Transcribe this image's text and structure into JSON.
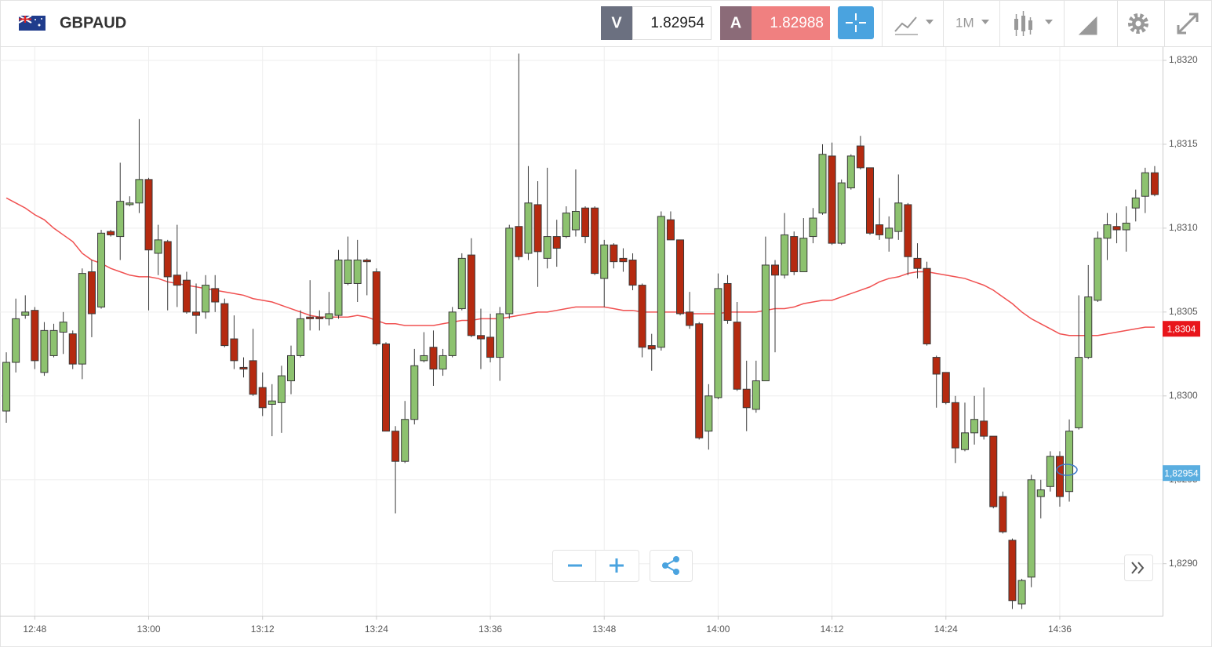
{
  "header": {
    "symbol": "GBPAUD",
    "bid_label": "V",
    "bid": "1.82954",
    "ask_label": "A",
    "ask": "1.82988",
    "timeframe": "1M"
  },
  "chart_data": {
    "type": "candlestick",
    "categories": [
      null,
      null,
      null,
      "12:48",
      null,
      null,
      null,
      null,
      null,
      null,
      null,
      null,
      null,
      null,
      null,
      "13:00",
      null,
      null,
      null,
      null,
      null,
      null,
      null,
      null,
      null,
      null,
      null,
      "13:12",
      null,
      null,
      null,
      null,
      null,
      null,
      null,
      null,
      null,
      null,
      null,
      "13:24",
      null,
      null,
      null,
      null,
      null,
      null,
      null,
      null,
      null,
      null,
      null,
      "13:36",
      null,
      null,
      null,
      null,
      null,
      null,
      null,
      null,
      null,
      null,
      null,
      "13:48",
      null,
      null,
      null,
      null,
      null,
      null,
      null,
      null,
      null,
      null,
      null,
      "14:00",
      null,
      null,
      null,
      null,
      null,
      null,
      null,
      null,
      null,
      null,
      null,
      "14:12",
      null,
      null,
      null,
      null,
      null,
      null,
      null,
      null,
      null,
      null,
      null,
      "14:24",
      null,
      null,
      null,
      null,
      null,
      null,
      null,
      null,
      null,
      null,
      null,
      "14:36",
      null,
      null,
      null,
      null,
      null,
      null,
      null,
      null,
      null,
      null
    ],
    "open": [
      1.82991,
      1.8302,
      1.83048,
      1.83051,
      1.83014,
      1.83024,
      1.83038,
      1.83037,
      1.83019,
      1.83074,
      1.83053,
      1.83098,
      1.83095,
      1.83114,
      1.83115,
      1.83129,
      1.83085,
      1.83092,
      1.83072,
      1.83069,
      1.8305,
      1.8305,
      1.83064,
      1.83055,
      1.83034,
      1.83017,
      1.83021,
      1.83005,
      1.82995,
      1.82996,
      1.83009,
      1.83024,
      1.83047,
      1.83047,
      1.83046,
      1.83048,
      1.83067,
      1.83067,
      1.83081,
      1.83074,
      1.83031,
      1.82979,
      1.82961,
      1.82986,
      1.83021,
      1.83029,
      1.83016,
      1.83024,
      1.83052,
      1.83084,
      1.83036,
      1.83035,
      1.83023,
      1.83049,
      1.83101,
      1.83085,
      1.83114,
      1.83082,
      1.83095,
      1.83095,
      1.83099,
      1.83112,
      1.83112,
      1.8307,
      1.8309,
      1.83082,
      1.83081,
      1.83066,
      1.8303,
      1.83029,
      1.83105,
      1.83093,
      1.8305,
      1.83043,
      1.82979,
      1.82999,
      1.83067,
      1.83044,
      1.83004,
      1.82992,
      1.83009,
      1.83078,
      1.83072,
      1.83095,
      1.83074,
      1.83095,
      1.83109,
      1.83143,
      1.83091,
      1.83124,
      1.83149,
      1.83136,
      1.83102,
      1.83094,
      1.83098,
      1.83114,
      1.83082,
      1.83076,
      1.83023,
      1.83014,
      1.82996,
      1.82968,
      1.82978,
      1.82985,
      1.82976,
      1.8294,
      1.82914,
      1.82876,
      1.82892,
      1.8294,
      1.82946,
      1.82964,
      1.82943,
      1.82981,
      1.83023,
      1.83057,
      1.83094,
      1.83101,
      1.83099,
      1.83112,
      1.83119,
      1.83133
    ],
    "high": [
      1.83026,
      1.83058,
      1.8306,
      1.83053,
      1.83044,
      1.83043,
      1.8305,
      1.83039,
      1.83076,
      1.83081,
      1.83099,
      1.83099,
      1.83139,
      1.83119,
      1.83165,
      1.8313,
      1.83102,
      1.83093,
      1.83102,
      1.83074,
      1.83067,
      1.83072,
      1.83072,
      1.83058,
      1.83048,
      1.83023,
      1.8304,
      1.83014,
      1.83007,
      1.83018,
      1.8303,
      1.83051,
      1.83069,
      1.83051,
      1.83062,
      1.83087,
      1.83095,
      1.83093,
      1.83082,
      1.83076,
      1.83032,
      1.82982,
      1.82997,
      1.83028,
      1.83038,
      1.83039,
      1.83028,
      1.83053,
      1.83085,
      1.83094,
      1.83052,
      1.83049,
      1.83053,
      1.83102,
      1.83204,
      1.83137,
      1.83128,
      1.83136,
      1.83105,
      1.83113,
      1.83135,
      1.83113,
      1.83113,
      1.83093,
      1.83091,
      1.83088,
      1.83085,
      1.83067,
      1.83037,
      1.8311,
      1.8311,
      1.83093,
      1.83062,
      1.83044,
      1.83007,
      1.83073,
      1.83072,
      1.83056,
      1.83021,
      1.83021,
      1.83095,
      1.83081,
      1.83109,
      1.83098,
      1.83106,
      1.83112,
      1.8315,
      1.83151,
      1.83129,
      1.83144,
      1.83155,
      1.83136,
      1.83118,
      1.83107,
      1.83132,
      1.83115,
      1.83091,
      1.8308,
      1.83024,
      1.83014,
      1.83,
      1.82996,
      1.83,
      1.83005,
      1.82976,
      1.82943,
      1.82915,
      1.82891,
      1.82953,
      1.8295,
      1.82967,
      1.82967,
      1.82986,
      1.8306,
      1.83078,
      1.83098,
      1.83109,
      1.83109,
      1.83113,
      1.83123,
      1.83136,
      1.83137
    ],
    "low": [
      1.82984,
      1.83014,
      1.83046,
      1.83016,
      1.83012,
      1.83023,
      1.83025,
      1.83016,
      1.8301,
      1.83035,
      1.83052,
      1.83095,
      1.83081,
      1.83113,
      1.83109,
      1.83051,
      1.83072,
      1.83051,
      1.83053,
      1.83049,
      1.83037,
      1.83046,
      1.8305,
      1.83029,
      1.83016,
      1.83011,
      1.83,
      1.82988,
      1.82976,
      1.82978,
      1.83001,
      1.83023,
      1.83039,
      1.83039,
      1.83042,
      1.83046,
      1.83066,
      1.83056,
      1.8306,
      1.8303,
      1.82979,
      1.8293,
      1.8296,
      1.82983,
      1.8302,
      1.83006,
      1.83012,
      1.83023,
      1.83051,
      1.83035,
      1.83016,
      1.8302,
      1.83009,
      1.83046,
      1.83081,
      1.83081,
      1.83065,
      1.83076,
      1.83077,
      1.83094,
      1.83095,
      1.83091,
      1.83072,
      1.83053,
      1.83076,
      1.83074,
      1.83063,
      1.83023,
      1.83015,
      1.83027,
      1.83093,
      1.83048,
      1.8304,
      1.82974,
      1.82968,
      1.82998,
      1.83043,
      1.83003,
      1.82979,
      1.8299,
      1.83009,
      1.83026,
      1.8307,
      1.83072,
      1.83074,
      1.83091,
      1.83108,
      1.8309,
      1.8309,
      1.83123,
      1.83135,
      1.83096,
      1.83093,
      1.83086,
      1.83093,
      1.83072,
      1.8307,
      1.8303,
      1.82993,
      1.82995,
      1.8296,
      1.82967,
      1.82971,
      1.82974,
      1.82933,
      1.82918,
      1.82873,
      1.82873,
      1.82886,
      1.82927,
      1.82943,
      1.82934,
      1.82937,
      1.8298,
      1.83022,
      1.83056,
      1.83081,
      1.83091,
      1.83086,
      1.83104,
      1.83109,
      1.83119
    ],
    "close": [
      1.8302,
      1.83046,
      1.8305,
      1.83021,
      1.83039,
      1.83039,
      1.83044,
      1.83019,
      1.83073,
      1.83049,
      1.83097,
      1.83096,
      1.83116,
      1.83115,
      1.83129,
      1.83087,
      1.83093,
      1.83071,
      1.83066,
      1.8305,
      1.83048,
      1.83066,
      1.83056,
      1.8303,
      1.83021,
      1.83016,
      1.83001,
      1.82993,
      1.82997,
      1.83012,
      1.83024,
      1.83046,
      1.83046,
      1.83046,
      1.83049,
      1.83081,
      1.83081,
      1.83081,
      1.8308,
      1.83031,
      1.82979,
      1.82961,
      1.82986,
      1.83018,
      1.83024,
      1.83016,
      1.83024,
      1.8305,
      1.83082,
      1.83036,
      1.83034,
      1.83023,
      1.83049,
      1.831,
      1.83083,
      1.83115,
      1.83086,
      1.83095,
      1.83088,
      1.83109,
      1.8311,
      1.83095,
      1.83073,
      1.8309,
      1.8308,
      1.8308,
      1.83066,
      1.83029,
      1.83028,
      1.83107,
      1.83093,
      1.83049,
      1.83042,
      1.82975,
      1.83,
      1.83064,
      1.83045,
      1.83004,
      1.82993,
      1.83009,
      1.83078,
      1.83072,
      1.83096,
      1.83074,
      1.83094,
      1.83106,
      1.83144,
      1.83091,
      1.83127,
      1.83143,
      1.83136,
      1.83097,
      1.83096,
      1.831,
      1.83115,
      1.83083,
      1.83076,
      1.83031,
      1.83013,
      1.82996,
      1.82969,
      1.82978,
      1.82986,
      1.82976,
      1.82934,
      1.82919,
      1.82878,
      1.8289,
      1.8295,
      1.82944,
      1.82964,
      1.8294,
      1.82979,
      1.83023,
      1.83059,
      1.83094,
      1.83102,
      1.83099,
      1.83103,
      1.83118,
      1.83133,
      1.8312
    ],
    "up_color": "#8dc26f",
    "down_color": "#b52a10",
    "ma": {
      "color": "#f05050",
      "values": [
        1.83118,
        1.83115,
        1.83112,
        1.83108,
        1.83105,
        1.831,
        1.83096,
        1.83092,
        1.83085,
        1.83081,
        1.83079,
        1.83076,
        1.83074,
        1.83072,
        1.83071,
        1.83071,
        1.8307,
        1.83068,
        1.83067,
        1.83066,
        1.83065,
        1.83064,
        1.83063,
        1.83062,
        1.83061,
        1.8306,
        1.83058,
        1.83057,
        1.83056,
        1.83054,
        1.83052,
        1.8305,
        1.83048,
        1.83047,
        1.83047,
        1.83047,
        1.83047,
        1.83048,
        1.83047,
        1.83045,
        1.83043,
        1.83043,
        1.83042,
        1.83042,
        1.83042,
        1.83042,
        1.83043,
        1.83044,
        1.83045,
        1.83045,
        1.83046,
        1.83046,
        1.83046,
        1.83047,
        1.83048,
        1.83049,
        1.8305,
        1.8305,
        1.83051,
        1.83052,
        1.83053,
        1.83053,
        1.83053,
        1.83053,
        1.83052,
        1.83051,
        1.83051,
        1.8305,
        1.8305,
        1.8305,
        1.8305,
        1.8305,
        1.83049,
        1.83049,
        1.83049,
        1.83049,
        1.8305,
        1.8305,
        1.8305,
        1.8305,
        1.83051,
        1.83052,
        1.83052,
        1.83053,
        1.83055,
        1.83056,
        1.83057,
        1.83057,
        1.83059,
        1.83061,
        1.83063,
        1.83065,
        1.83068,
        1.8307,
        1.83071,
        1.83073,
        1.83074,
        1.83074,
        1.83073,
        1.83072,
        1.83071,
        1.8307,
        1.83068,
        1.83066,
        1.83063,
        1.83059,
        1.83055,
        1.8305,
        1.83046,
        1.83043,
        1.8304,
        1.83037,
        1.83036,
        1.83036,
        1.83036,
        1.83036,
        1.83037,
        1.83038,
        1.83039,
        1.8304,
        1.83041,
        1.83041
      ]
    },
    "ylim": [
      1.82869,
      1.83207
    ],
    "yticks": [
      {
        "value": 1.829,
        "label": "1,8290"
      },
      {
        "value": 1.8295,
        "label": "1,8295"
      },
      {
        "value": 1.83,
        "label": "1,8300"
      },
      {
        "value": 1.8305,
        "label": "1,8305"
      },
      {
        "value": 1.831,
        "label": "1,8310"
      },
      {
        "value": 1.8315,
        "label": "1,8315"
      },
      {
        "value": 1.832,
        "label": "1,8320"
      }
    ],
    "grid": true,
    "ma_last": {
      "value": 1.8304,
      "label": "1,8304"
    },
    "last_price": {
      "value": 1.82954,
      "label": "1,82954"
    }
  }
}
